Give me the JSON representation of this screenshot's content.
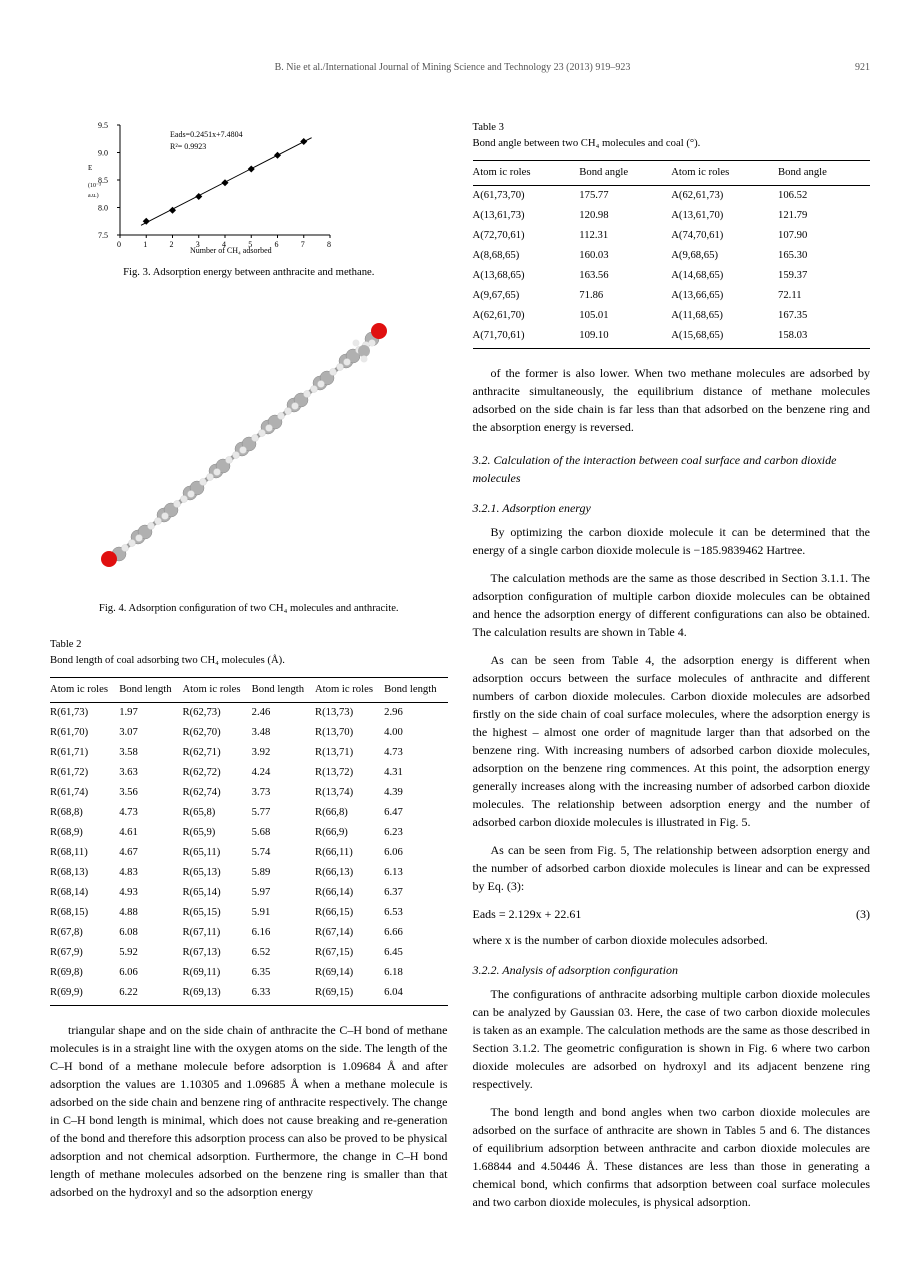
{
  "header": {
    "citation": "B. Nie et al./International Journal of Mining Science and Technology 23 (2013) 919–923",
    "page": "921"
  },
  "chart": {
    "type": "scatter-line",
    "xlabel": "Number of CH₄ adsorbed",
    "ylim": [
      7.5,
      9.5
    ],
    "ytick_step": 0.5,
    "xlim": [
      0,
      8
    ],
    "xtick_step": 1,
    "points": [
      {
        "x": 1,
        "y": 7.75
      },
      {
        "x": 2,
        "y": 7.95
      },
      {
        "x": 3,
        "y": 8.2
      },
      {
        "x": 4,
        "y": 8.45
      },
      {
        "x": 5,
        "y": 8.7
      },
      {
        "x": 6,
        "y": 8.95
      },
      {
        "x": 7,
        "y": 9.2
      }
    ],
    "annotation1": "Eads=0.2451x+7.4804",
    "annotation2": "R²= 0.9923",
    "ylabel_text": "E (10⁻³ a.u.)",
    "marker_color": "#000000",
    "line_color": "#000000"
  },
  "fig3_caption": "Fig. 3. Adsorption energy between anthracite and methane.",
  "fig4_caption": "Fig. 4. Adsorption conﬁguration of two CH₄ molecules and anthracite.",
  "table2": {
    "title": "Table 2",
    "subtitle": "Bond length of coal adsorbing two CH₄ molecules (Å).",
    "headers": [
      "Atom ic roles",
      "Bond length",
      "Atom ic roles",
      "Bond length",
      "Atom ic roles",
      "Bond length"
    ],
    "rows": [
      [
        "R(61,73)",
        "1.97",
        "R(62,73)",
        "2.46",
        "R(13,73)",
        "2.96"
      ],
      [
        "R(61,70)",
        "3.07",
        "R(62,70)",
        "3.48",
        "R(13,70)",
        "4.00"
      ],
      [
        "R(61,71)",
        "3.58",
        "R(62,71)",
        "3.92",
        "R(13,71)",
        "4.73"
      ],
      [
        "R(61,72)",
        "3.63",
        "R(62,72)",
        "4.24",
        "R(13,72)",
        "4.31"
      ],
      [
        "R(61,74)",
        "3.56",
        "R(62,74)",
        "3.73",
        "R(13,74)",
        "4.39"
      ],
      [
        "R(68,8)",
        "4.73",
        "R(65,8)",
        "5.77",
        "R(66,8)",
        "6.47"
      ],
      [
        "R(68,9)",
        "4.61",
        "R(65,9)",
        "5.68",
        "R(66,9)",
        "6.23"
      ],
      [
        "R(68,11)",
        "4.67",
        "R(65,11)",
        "5.74",
        "R(66,11)",
        "6.06"
      ],
      [
        "R(68,13)",
        "4.83",
        "R(65,13)",
        "5.89",
        "R(66,13)",
        "6.13"
      ],
      [
        "R(68,14)",
        "4.93",
        "R(65,14)",
        "5.97",
        "R(66,14)",
        "6.37"
      ],
      [
        "R(68,15)",
        "4.88",
        "R(65,15)",
        "5.91",
        "R(66,15)",
        "6.53"
      ],
      [
        "R(67,8)",
        "6.08",
        "R(67,11)",
        "6.16",
        "R(67,14)",
        "6.66"
      ],
      [
        "R(67,9)",
        "5.92",
        "R(67,13)",
        "6.52",
        "R(67,15)",
        "6.45"
      ],
      [
        "R(69,8)",
        "6.06",
        "R(69,11)",
        "6.35",
        "R(69,14)",
        "6.18"
      ],
      [
        "R(69,9)",
        "6.22",
        "R(69,13)",
        "6.33",
        "R(69,15)",
        "6.04"
      ]
    ]
  },
  "table3": {
    "title": "Table 3",
    "subtitle": "Bond angle between two CH₄ molecules and coal (°).",
    "headers": [
      "Atom ic roles",
      "Bond angle",
      "Atom ic roles",
      "Bond angle"
    ],
    "rows": [
      [
        "A(61,73,70)",
        "175.77",
        "A(62,61,73)",
        "106.52"
      ],
      [
        "A(13,61,73)",
        "120.98",
        "A(13,61,70)",
        "121.79"
      ],
      [
        "A(72,70,61)",
        "112.31",
        "A(74,70,61)",
        "107.90"
      ],
      [
        "A(8,68,65)",
        "160.03",
        "A(9,68,65)",
        "165.30"
      ],
      [
        "A(13,68,65)",
        "163.56",
        "A(14,68,65)",
        "159.37"
      ],
      [
        "A(9,67,65)",
        "71.86",
        "A(13,66,65)",
        "72.11"
      ],
      [
        "A(62,61,70)",
        "105.01",
        "A(11,68,65)",
        "167.35"
      ],
      [
        "A(71,70,61)",
        "109.10",
        "A(15,68,65)",
        "158.03"
      ]
    ]
  },
  "left_para": "triangular shape and on the side chain of anthracite the C–H bond of methane molecules is in a straight line with the oxygen atoms on the side. The length of the C–H bond of a methane molecule before adsorption is 1.09684 Å and after adsorption the values are 1.10305 and 1.09685 Å when a methane molecule is adsorbed on the side chain and benzene ring of anthracite respectively. The change in C–H bond length is minimal, which does not cause breaking and re-generation of the bond and therefore this adsorption process can also be proved to be physical adsorption and not chemical adsorption. Furthermore, the change in C–H bond length of methane molecules adsorbed on the benzene ring is smaller than that adsorbed on the hydroxyl and so the adsorption energy",
  "right_para1": "of the former is also lower. When two methane molecules are adsorbed by anthracite simultaneously, the equilibrium distance of methane molecules adsorbed on the side chain is far less than that adsorbed on the benzene ring and the absorption energy is reversed.",
  "section32": "3.2. Calculation of the interaction between coal surface and carbon dioxide molecules",
  "section321": "3.2.1. Adsorption energy",
  "para321a": "By optimizing the carbon dioxide molecule it can be determined that the energy of a single carbon dioxide molecule is −185.9839462 Hartree.",
  "para321b": "The calculation methods are the same as those described in Section 3.1.1. The adsorption conﬁguration of multiple carbon dioxide molecules can be obtained and hence the adsorption energy of different conﬁgurations can also be obtained. The calculation results are shown in Table 4.",
  "para321c": "As can be seen from Table 4, the adsorption energy is different when adsorption occurs between the surface molecules of anthracite and different numbers of carbon dioxide molecules. Carbon dioxide molecules are adsorbed ﬁrstly on the side chain of coal surface molecules, where the adsorption energy is the highest – almost one order of magnitude larger than that adsorbed on the benzene ring. With increasing numbers of adsorbed carbon dioxide molecules, adsorption on the benzene ring commences. At this point, the adsorption energy generally increases along with the increasing number of adsorbed carbon dioxide molecules. The relationship between adsorption energy and the number of adsorbed carbon dioxide molecules is illustrated in Fig. 5.",
  "para321d": "As can be seen from Fig. 5, The relationship between adsorption energy and the number of adsorbed carbon dioxide molecules is linear and can be expressed by Eq. (3):",
  "eq3": "Eads = 2.129x + 22.61",
  "eq3_num": "(3)",
  "para321e": "where x is the number of carbon dioxide molecules adsorbed.",
  "section322": "3.2.2. Analysis of adsorption conﬁguration",
  "para322a": "The conﬁgurations of anthracite adsorbing multiple carbon dioxide molecules can be analyzed by Gaussian 03. Here, the case of two carbon dioxide molecules is taken as an example. The calculation methods are the same as those described in Section 3.1.2. The geometric conﬁguration is shown in Fig. 6 where two carbon dioxide molecules are adsorbed on hydroxyl and its adjacent benzene ring respectively.",
  "para322b": "The bond length and bond angles when two carbon dioxide molecules are adsorbed on the surface of anthracite are shown in Tables 5 and 6. The distances of equilibrium adsorption between anthracite and carbon dioxide molecules are 1.68844 and 4.50446 Å. These distances are less than those in generating a chemical bond, which conﬁrms that adsorption between coal surface molecules and two carbon dioxide molecules, is physical adsorption.",
  "molecule": {
    "atom_colors": {
      "C": "#b0b0b0",
      "H": "#e8e8e8",
      "O": "#e01010"
    },
    "bond_color": "#999999"
  }
}
